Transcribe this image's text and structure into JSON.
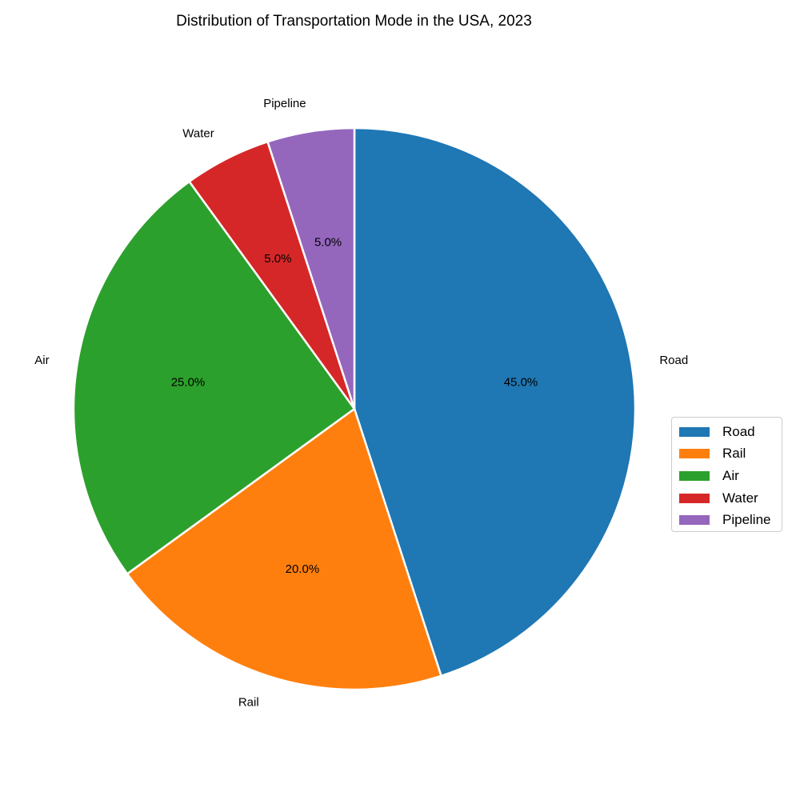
{
  "chart_data": {
    "type": "pie",
    "title": "Distribution of Transportation Mode in the USA, 2023",
    "slices": [
      {
        "label": "Road",
        "value": 45.0,
        "pct_label": "45.0%",
        "color": "#1f77b4"
      },
      {
        "label": "Rail",
        "value": 20.0,
        "pct_label": "20.0%",
        "color": "#ff7f0e"
      },
      {
        "label": "Air",
        "value": 25.0,
        "pct_label": "25.0%",
        "color": "#2ca02c"
      },
      {
        "label": "Water",
        "value": 5.0,
        "pct_label": "5.0%",
        "color": "#d62728"
      },
      {
        "label": "Pipeline",
        "value": 5.0,
        "pct_label": "5.0%",
        "color": "#9467bd"
      }
    ],
    "start_angle_deg": 90,
    "direction": "clockwise",
    "legend_position": "center-right"
  }
}
